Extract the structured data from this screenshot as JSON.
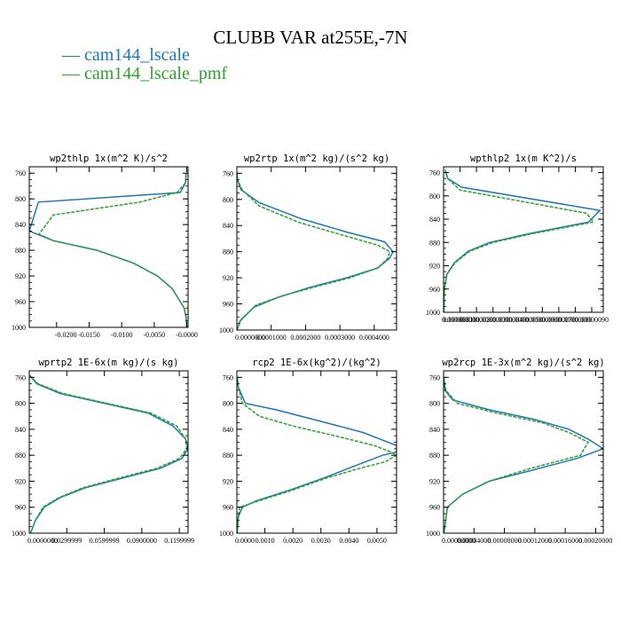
{
  "figure": {
    "title": "CLUBB VAR at255E,-7N",
    "legend": [
      {
        "name": "cam144_lscale",
        "color": "#1f77b4",
        "dash": "solid"
      },
      {
        "name": "cam144_lscale_pmf",
        "color": "#2ca02c",
        "dash": "dashed"
      }
    ]
  },
  "chart_data": [
    {
      "type": "line",
      "title": "wp2thlp  1x(m^2 K)/s^2",
      "ylim": [
        1000,
        750
      ],
      "yticks": [
        760,
        800,
        840,
        880,
        920,
        960,
        1000
      ],
      "xlim": [
        -0.0242,
        0.0002
      ],
      "xticks": [
        -0.02,
        -0.015,
        -0.01,
        -0.005,
        0.0
      ],
      "xticklabels": [
        "-0.0200",
        "-0.0150",
        "-0.0100",
        "-0.0050",
        "-0.0000"
      ],
      "series": [
        {
          "name": "cam144_lscale",
          "x": [
            -0.0001,
            -0.0002,
            -0.001,
            -0.0228,
            -0.0242,
            -0.0205,
            -0.0138,
            -0.0082,
            -0.0045,
            -0.0022,
            -0.001,
            -0.0004,
            -0.0001,
            0.0
          ],
          "y": [
            760,
            775,
            790,
            805,
            850,
            865,
            880,
            900,
            920,
            940,
            960,
            970,
            985,
            1000
          ]
        },
        {
          "name": "cam144_lscale_pmf",
          "x": [
            -0.0001,
            -0.0002,
            -0.0015,
            -0.0072,
            -0.0205,
            -0.0227,
            -0.0205,
            -0.0138,
            -0.0082,
            -0.0045,
            -0.0022,
            -0.001,
            -0.0004,
            -0.0001,
            0.0
          ],
          "y": [
            760,
            775,
            790,
            805,
            825,
            855,
            865,
            880,
            900,
            920,
            940,
            960,
            970,
            985,
            1000
          ]
        }
      ]
    },
    {
      "type": "line",
      "title": "wp2rtp  1x(m^2 kg)/(s^2 kg)",
      "ylim": [
        1000,
        750
      ],
      "yticks": [
        760,
        800,
        840,
        880,
        920,
        960,
        1000
      ],
      "xlim": [
        0,
        0.000465
      ],
      "xticks": [
        0,
        0.0001,
        0.0002,
        0.0003,
        0.0004
      ],
      "xticklabels": [
        "0.0000000",
        "0.0001000",
        "0.0002000",
        "0.0003000",
        "0.0004000"
      ],
      "series": [
        {
          "name": "cam144_lscale",
          "x": [
            3e-07,
            2e-06,
            1.2e-05,
            6.5e-05,
            0.00019,
            0.00032,
            0.00043,
            0.000455,
            0.000445,
            0.00041,
            0.00032,
            0.00021,
            0.00012,
            5e-05,
            1e-05,
            5e-07
          ],
          "y": [
            760,
            770,
            785,
            805,
            830,
            850,
            865,
            880,
            890,
            905,
            920,
            935,
            950,
            965,
            985,
            1000
          ]
        },
        {
          "name": "cam144_lscale_pmf",
          "x": [
            3e-07,
            2.5e-06,
            1.5e-05,
            6.5e-05,
            0.00018,
            0.00031,
            0.00041,
            0.000445,
            0.00044,
            0.00041,
            0.00033,
            0.00022,
            0.00013,
            5.5e-05,
            1.2e-05,
            5e-07
          ],
          "y": [
            760,
            770,
            785,
            810,
            835,
            855,
            870,
            880,
            890,
            905,
            920,
            935,
            948,
            962,
            985,
            1000
          ]
        }
      ]
    },
    {
      "type": "line",
      "title": "wpthlp2  1x(m K^2)/s",
      "ylim": [
        1000,
        750
      ],
      "yticks": [
        760,
        800,
        840,
        880,
        920,
        960,
        1000
      ],
      "xlim": [
        0,
        9.7e-07
      ],
      "xticks": [
        0,
        1e-07,
        2e-07,
        3e-07,
        4e-07,
        5e-07,
        6e-07,
        7e-07,
        8e-07,
        9e-07
      ],
      "xticklabels": [
        "0.00000000",
        "0.00000010",
        "0.00000020",
        "0.00000030",
        "0.00000040",
        "0.00000050",
        "0.00000060",
        "0.00000070",
        "0.00000080",
        "0.00000090"
      ],
      "series": [
        {
          "name": "cam144_lscale",
          "x": [
            1e-08,
            2.5e-08,
            1.1e-07,
            9.5e-07,
            8.8e-07,
            5.2e-07,
            2.8e-07,
            1.5e-07,
            6.5e-08,
            2e-08,
            5e-09,
            1e-09
          ],
          "y": [
            755,
            770,
            785,
            825,
            845,
            865,
            880,
            895,
            915,
            935,
            960,
            1000
          ]
        },
        {
          "name": "cam144_lscale_pmf",
          "x": [
            1e-08,
            2.5e-08,
            1e-07,
            8.7e-07,
            9.1e-07,
            5.4e-07,
            3e-07,
            1.6e-07,
            7e-08,
            2e-08,
            5e-09,
            1e-09
          ],
          "y": [
            755,
            770,
            790,
            830,
            845,
            865,
            880,
            895,
            915,
            935,
            960,
            1000
          ]
        }
      ]
    },
    {
      "type": "line",
      "title": "wprtp2  1E-6x(m kg)/(s kg)",
      "ylim": [
        1000,
        750
      ],
      "yticks": [
        760,
        800,
        840,
        880,
        920,
        960,
        1000
      ],
      "xlim": [
        0,
        0.127
      ],
      "xticks": [
        0,
        0.03,
        0.06,
        0.09,
        0.12
      ],
      "xticklabels": [
        "0.0000000",
        "0.0299999",
        "0.0599999",
        "0.0900000",
        "0.1199999"
      ],
      "series": [
        {
          "name": "cam144_lscale",
          "x": [
            0.0003,
            0.006,
            0.025,
            0.06,
            0.095,
            0.115,
            0.125,
            0.127,
            0.122,
            0.105,
            0.075,
            0.045,
            0.025,
            0.012,
            0.005,
            0.001
          ],
          "y": [
            757,
            770,
            785,
            800,
            815,
            835,
            855,
            870,
            885,
            900,
            915,
            930,
            945,
            960,
            980,
            1000
          ]
        },
        {
          "name": "cam144_lscale_pmf",
          "x": [
            0.0003,
            0.007,
            0.027,
            0.062,
            0.097,
            0.118,
            0.125,
            0.126,
            0.12,
            0.102,
            0.072,
            0.043,
            0.024,
            0.011,
            0.005,
            0.001
          ],
          "y": [
            757,
            770,
            785,
            800,
            815,
            835,
            855,
            870,
            885,
            900,
            915,
            930,
            945,
            960,
            980,
            1000
          ]
        }
      ]
    },
    {
      "type": "line",
      "title": "rcp2  1E-6x(kg^2)/(kg^2)",
      "ylim": [
        1000,
        750
      ],
      "yticks": [
        760,
        800,
        840,
        880,
        920,
        960,
        1000
      ],
      "xlim": [
        0,
        0.0057
      ],
      "xticks": [
        0,
        0.001,
        0.002,
        0.003,
        0.004,
        0.005
      ],
      "xticklabels": [
        "0.0000",
        "0.0010",
        "0.0020",
        "0.0030",
        "0.0040",
        "0.0050"
      ],
      "series": [
        {
          "name": "cam144_lscale",
          "x": [
            2e-05,
            5e-05,
            0.0003,
            0.0014,
            0.0032,
            0.0045,
            0.0057,
            0.0057,
            0.0052,
            0.0043,
            0.0031,
            0.0018,
            0.0007,
            0.0002,
            5e-05,
            1e-05
          ],
          "y": [
            760,
            775,
            800,
            810,
            830,
            845,
            865,
            875,
            880,
            895,
            915,
            935,
            950,
            960,
            975,
            1000
          ]
        },
        {
          "name": "cam144_lscale_pmf",
          "x": [
            2e-05,
            5e-05,
            0.0002,
            0.0008,
            0.002,
            0.0035,
            0.0049,
            0.0055,
            0.0057,
            0.0053,
            0.0044,
            0.0032,
            0.0019,
            0.0008,
            0.0001,
            5e-05,
            1e-05
          ],
          "y": [
            760,
            775,
            800,
            820,
            835,
            850,
            865,
            875,
            880,
            890,
            900,
            915,
            935,
            950,
            960,
            975,
            1000
          ]
        }
      ]
    },
    {
      "type": "line",
      "title": "wp2rcp  1E-3x(m^2 kg)/(s^2 kg)",
      "ylim": [
        1000,
        750
      ],
      "yticks": [
        760,
        800,
        840,
        880,
        920,
        960,
        1000
      ],
      "xlim": [
        0,
        0.00021
      ],
      "xticks": [
        0,
        4e-05,
        8e-05,
        0.00012,
        0.00016,
        0.0002
      ],
      "xticklabels": [
        "0.00000000",
        "0.00004000",
        "0.00008000",
        "0.00012000",
        "0.00016000",
        "0.00020000"
      ],
      "series": [
        {
          "name": "cam144_lscale",
          "x": [
            3e-07,
            2e-06,
            1.2e-05,
            6e-05,
            0.00012,
            0.000165,
            0.00019,
            0.00021,
            0.000175,
            0.00011,
            6e-05,
            2.5e-05,
            5e-06,
            5e-07
          ],
          "y": [
            760,
            780,
            795,
            810,
            825,
            840,
            855,
            870,
            885,
            905,
            920,
            940,
            960,
            1000
          ]
        },
        {
          "name": "cam144_lscale_pmf",
          "x": [
            3e-07,
            3e-06,
            1.8e-05,
            7e-05,
            0.00013,
            0.000165,
            0.00019,
            0.00018,
            0.000115,
            6e-05,
            2.5e-05,
            5e-06,
            5e-07
          ],
          "y": [
            760,
            780,
            800,
            815,
            830,
            845,
            860,
            880,
            900,
            920,
            940,
            960,
            1000
          ]
        }
      ]
    }
  ]
}
